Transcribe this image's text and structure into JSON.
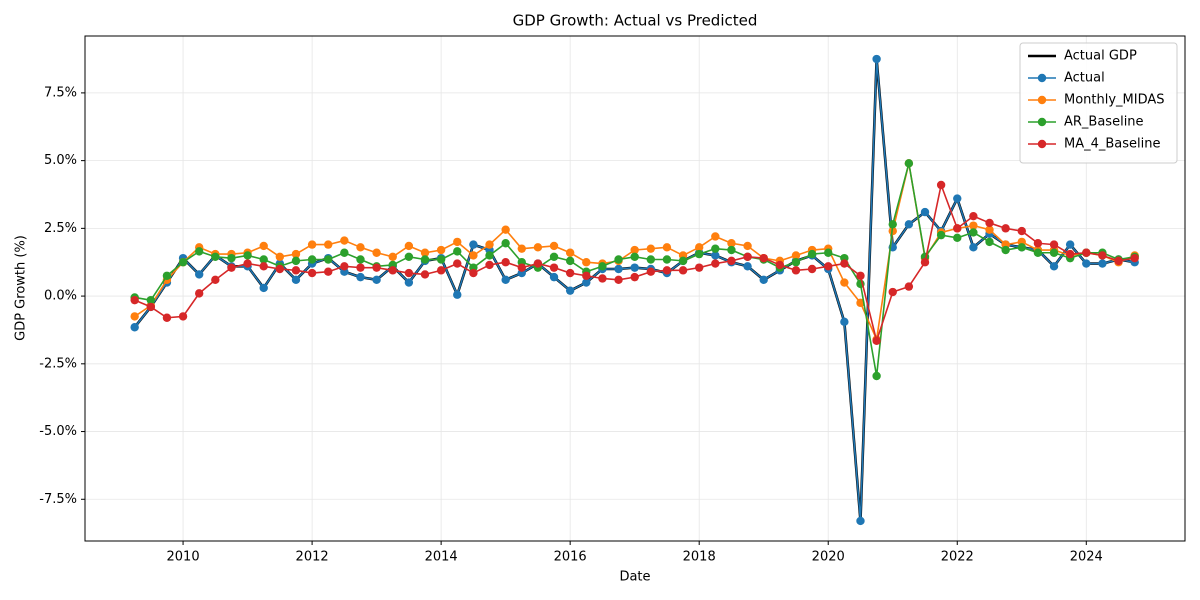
{
  "chart_data": {
    "type": "line",
    "title": "GDP Growth: Actual vs Predicted",
    "x_label": "Date",
    "y_label": "GDP Growth (%)",
    "x": [
      2009.25,
      2009.5,
      2009.75,
      2010,
      2010.25,
      2010.5,
      2010.75,
      2011,
      2011.25,
      2011.5,
      2011.75,
      2012,
      2012.25,
      2012.5,
      2012.75,
      2013,
      2013.25,
      2013.5,
      2013.75,
      2014,
      2014.25,
      2014.5,
      2014.75,
      2015,
      2015.25,
      2015.5,
      2015.75,
      2016,
      2016.25,
      2016.5,
      2016.75,
      2017,
      2017.25,
      2017.5,
      2017.75,
      2018,
      2018.25,
      2018.5,
      2018.75,
      2019,
      2019.25,
      2019.5,
      2019.75,
      2020,
      2020.25,
      2020.5,
      2020.75,
      2021,
      2021.25,
      2021.5,
      2021.75,
      2022,
      2022.25,
      2022.5,
      2022.75,
      2023,
      2023.25,
      2023.5,
      2023.75,
      2024,
      2024.25,
      2024.5,
      2024.75
    ],
    "series": [
      {
        "name": "Actual GDP",
        "color": "#000000",
        "marker": false,
        "values": [
          -1.15,
          -0.4,
          0.5,
          1.4,
          0.8,
          1.5,
          1.1,
          1.1,
          0.3,
          1.2,
          0.6,
          1.2,
          1.4,
          0.9,
          0.7,
          0.6,
          1.1,
          0.5,
          1.3,
          1.4,
          0.05,
          1.9,
          1.7,
          0.6,
          0.85,
          1.2,
          0.7,
          0.2,
          0.5,
          1.0,
          1.0,
          1.05,
          1.0,
          0.85,
          1.3,
          1.6,
          1.5,
          1.25,
          1.1,
          0.6,
          0.95,
          1.3,
          1.5,
          1.0,
          -0.95,
          -8.3,
          8.75,
          1.8,
          2.65,
          3.1,
          2.4,
          3.6,
          1.8,
          2.3,
          1.9,
          1.8,
          1.7,
          1.1,
          1.9,
          1.2,
          1.2,
          1.35,
          1.25
        ]
      },
      {
        "name": "Actual",
        "color": "#1f77b4",
        "marker": true,
        "values": [
          -1.15,
          -0.4,
          0.5,
          1.4,
          0.8,
          1.5,
          1.1,
          1.1,
          0.3,
          1.2,
          0.6,
          1.2,
          1.4,
          0.9,
          0.7,
          0.6,
          1.1,
          0.5,
          1.3,
          1.4,
          0.05,
          1.9,
          1.7,
          0.6,
          0.85,
          1.2,
          0.7,
          0.2,
          0.5,
          1.0,
          1.0,
          1.05,
          1.0,
          0.85,
          1.3,
          1.6,
          1.5,
          1.25,
          1.1,
          0.6,
          0.95,
          1.3,
          1.5,
          1.0,
          -0.95,
          -8.3,
          8.75,
          1.8,
          2.65,
          3.1,
          2.4,
          3.6,
          1.8,
          2.3,
          1.9,
          1.8,
          1.7,
          1.1,
          1.9,
          1.2,
          1.2,
          1.35,
          1.25
        ]
      },
      {
        "name": "Monthly_MIDAS",
        "color": "#ff7f0e",
        "marker": true,
        "values": [
          -0.75,
          -0.35,
          0.6,
          1.25,
          1.8,
          1.55,
          1.55,
          1.6,
          1.85,
          1.45,
          1.55,
          1.9,
          1.9,
          2.05,
          1.8,
          1.6,
          1.45,
          1.85,
          1.6,
          1.7,
          2.0,
          1.5,
          1.9,
          2.45,
          1.75,
          1.8,
          1.85,
          1.6,
          1.25,
          1.2,
          1.3,
          1.7,
          1.75,
          1.8,
          1.5,
          1.8,
          2.2,
          1.95,
          1.85,
          1.4,
          1.3,
          1.5,
          1.7,
          1.75,
          0.5,
          -0.25,
          -1.6,
          2.4,
          4.9,
          1.4,
          2.35,
          2.5,
          2.6,
          2.45,
          1.9,
          2.0,
          1.7,
          1.7,
          1.5,
          1.6,
          1.5,
          1.25,
          1.5
        ]
      },
      {
        "name": "AR_Baseline",
        "color": "#2ca02c",
        "marker": true,
        "values": [
          -0.05,
          -0.15,
          0.75,
          1.25,
          1.65,
          1.45,
          1.4,
          1.5,
          1.35,
          1.1,
          1.3,
          1.35,
          1.35,
          1.6,
          1.35,
          1.1,
          1.15,
          1.45,
          1.35,
          1.35,
          1.65,
          1.05,
          1.5,
          1.95,
          1.25,
          1.05,
          1.45,
          1.3,
          0.9,
          1.1,
          1.35,
          1.45,
          1.35,
          1.35,
          1.3,
          1.55,
          1.75,
          1.7,
          1.45,
          1.35,
          1.05,
          1.25,
          1.55,
          1.6,
          1.4,
          0.45,
          -2.95,
          2.65,
          4.9,
          1.45,
          2.25,
          2.15,
          2.35,
          2.0,
          1.7,
          1.8,
          1.6,
          1.6,
          1.4,
          1.6,
          1.6,
          1.35,
          1.45
        ]
      },
      {
        "name": "MA_4_Baseline",
        "color": "#d62728",
        "marker": true,
        "values": [
          -0.15,
          -0.4,
          -0.8,
          -0.75,
          0.1,
          0.6,
          1.05,
          1.2,
          1.1,
          1.0,
          0.95,
          0.85,
          0.9,
          1.1,
          1.05,
          1.05,
          0.95,
          0.85,
          0.8,
          0.95,
          1.2,
          0.85,
          1.15,
          1.25,
          1.05,
          1.2,
          1.05,
          0.85,
          0.75,
          0.65,
          0.6,
          0.7,
          0.9,
          0.95,
          0.95,
          1.05,
          1.2,
          1.3,
          1.45,
          1.4,
          1.15,
          0.95,
          1.0,
          1.1,
          1.2,
          0.75,
          -1.65,
          0.15,
          0.35,
          1.25,
          4.1,
          2.5,
          2.95,
          2.7,
          2.5,
          2.4,
          1.95,
          1.9,
          1.55,
          1.6,
          1.5,
          1.3,
          1.4
        ]
      }
    ],
    "xlim": [
      2008.48,
      2025.53
    ],
    "xticks": [
      2010,
      2012,
      2014,
      2016,
      2018,
      2020,
      2022,
      2024
    ],
    "ylim": [
      -9.04,
      9.6
    ],
    "yticks": [
      {
        "value": -7.5,
        "label": "-7.5%"
      },
      {
        "value": -5,
        "label": "-5.0%"
      },
      {
        "value": -2.5,
        "label": "-2.5%"
      },
      {
        "value": 0,
        "label": "0.0%"
      },
      {
        "value": 2.5,
        "label": "2.5%"
      },
      {
        "value": 5,
        "label": "5.0%"
      },
      {
        "value": 7.5,
        "label": "7.5%"
      }
    ],
    "grid": true,
    "legend": "upper right"
  }
}
